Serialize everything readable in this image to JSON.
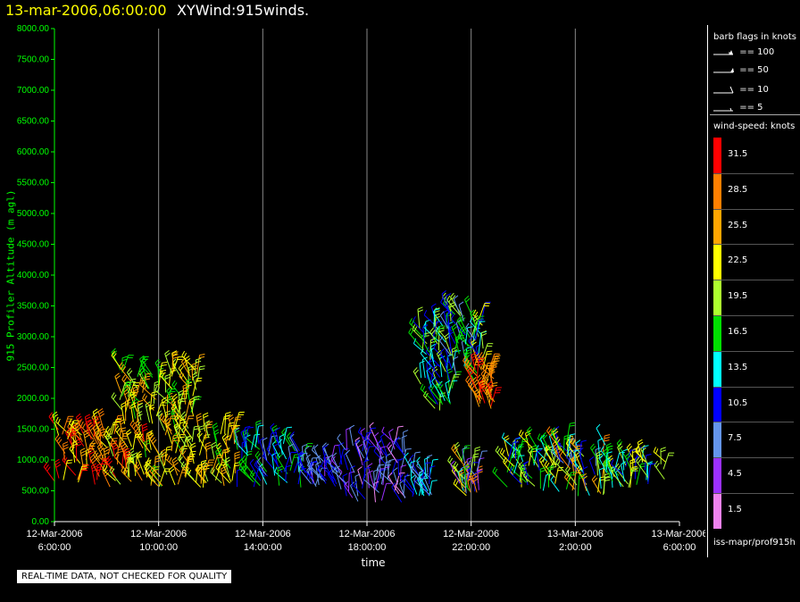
{
  "header": {
    "time": "13-mar-2006,06:00:00",
    "name": "XYWind:915winds."
  },
  "notice": "REAL-TIME DATA, NOT CHECKED FOR QUALITY",
  "legend": {
    "barb_title": "barb flags in knots",
    "barb_items": [
      "== 100",
      "== 50",
      "== 10",
      "== 5"
    ],
    "colorbar_title": "wind-speed: knots",
    "colorbar": [
      {
        "label": "31.5",
        "color": "#ff0000"
      },
      {
        "label": "28.5",
        "color": "#ff7f00"
      },
      {
        "label": "25.5",
        "color": "#ffa500"
      },
      {
        "label": "22.5",
        "color": "#ffff00"
      },
      {
        "label": "19.5",
        "color": "#adff2f"
      },
      {
        "label": "16.5",
        "color": "#00e000"
      },
      {
        "label": "13.5",
        "color": "#00ffff"
      },
      {
        "label": "10.5",
        "color": "#0000ff"
      },
      {
        "label": "7.5",
        "color": "#6495ed"
      },
      {
        "label": "4.5",
        "color": "#9b30ff"
      },
      {
        "label": "1.5",
        "color": "#ee82ee"
      }
    ],
    "footer": "iss-mapr/prof915h"
  },
  "chart_data": {
    "type": "scatter",
    "ylabel": "915 Profiler Altitude (m agl)",
    "xlabel": "time",
    "ylim": [
      0,
      8000
    ],
    "yticks": [
      "0.00",
      "500.00",
      "1000.00",
      "1500.00",
      "2000.00",
      "2500.00",
      "3000.00",
      "3500.00",
      "4000.00",
      "4500.00",
      "5000.00",
      "5500.00",
      "6000.00",
      "6500.00",
      "7000.00",
      "7500.00",
      "8000.00"
    ],
    "xticks": [
      {
        "date": "12-Mar-2006",
        "time": "6:00:00"
      },
      {
        "date": "12-Mar-2006",
        "time": "10:00:00"
      },
      {
        "date": "12-Mar-2006",
        "time": "14:00:00"
      },
      {
        "date": "12-Mar-2006",
        "time": "18:00:00"
      },
      {
        "date": "12-Mar-2006",
        "time": "22:00:00"
      },
      {
        "date": "13-Mar-2006",
        "time": "2:00:00"
      },
      {
        "date": "13-Mar-2006",
        "time": "6:00:00"
      }
    ],
    "clusters": [
      {
        "hours": [
          6.0,
          9.5
        ],
        "alt": [
          550,
          1500
        ],
        "speed": [
          20,
          33
        ]
      },
      {
        "hours": [
          8.5,
          11.5
        ],
        "alt": [
          1500,
          2500
        ],
        "speed": [
          15,
          27
        ]
      },
      {
        "hours": [
          9.5,
          13.0
        ],
        "alt": [
          550,
          1500
        ],
        "speed": [
          17,
          27
        ]
      },
      {
        "hours": [
          13.0,
          15.5
        ],
        "alt": [
          550,
          1300
        ],
        "speed": [
          8,
          18
        ]
      },
      {
        "hours": [
          15.5,
          17.0
        ],
        "alt": [
          550,
          1000
        ],
        "speed": [
          5,
          12
        ]
      },
      {
        "hours": [
          17.0,
          19.5
        ],
        "alt": [
          300,
          1300
        ],
        "speed": [
          2,
          12
        ]
      },
      {
        "hours": [
          19.7,
          20.5
        ],
        "alt": [
          400,
          800
        ],
        "speed": [
          6,
          14
        ]
      },
      {
        "hours": [
          20.0,
          21.3
        ],
        "alt": [
          1800,
          3200
        ],
        "speed": [
          8,
          20
        ]
      },
      {
        "hours": [
          21.0,
          22.5
        ],
        "alt": [
          2300,
          3400
        ],
        "speed": [
          8,
          22
        ]
      },
      {
        "hours": [
          22.0,
          22.9
        ],
        "alt": [
          1800,
          2500
        ],
        "speed": [
          24,
          33
        ]
      },
      {
        "hours": [
          21.5,
          22.3
        ],
        "alt": [
          400,
          1000
        ],
        "speed": [
          3,
          30
        ]
      },
      {
        "hours": [
          23.3,
          25.3
        ],
        "alt": [
          500,
          1200
        ],
        "speed": [
          10,
          24
        ]
      },
      {
        "hours": [
          25.3,
          27.2
        ],
        "alt": [
          400,
          1300
        ],
        "speed": [
          8,
          28
        ]
      },
      {
        "hours": [
          27.2,
          29.5
        ],
        "alt": [
          550,
          1000
        ],
        "speed": [
          10,
          24
        ]
      }
    ]
  }
}
